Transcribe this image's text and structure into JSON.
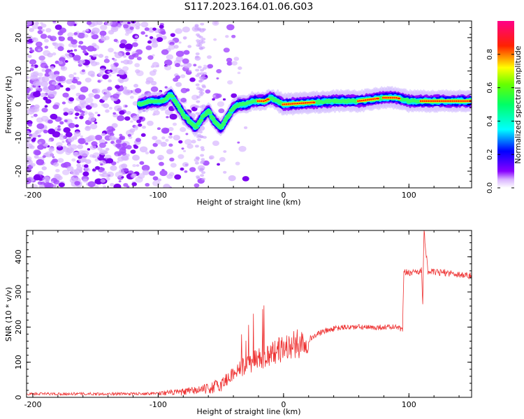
{
  "figure_title": "S117.2023.164.01.06.G03",
  "chart_data": [
    {
      "type": "heatmap",
      "title": "",
      "xlabel": "Height of straight line (km)",
      "ylabel": "Frequency (Hz)",
      "xlim": [
        -205,
        150
      ],
      "ylim": [
        -25,
        25
      ],
      "xticks": [
        -200,
        -100,
        0,
        100
      ],
      "yticks": [
        -20,
        -10,
        0,
        10,
        20
      ],
      "grid": false,
      "colorbar": {
        "label": "Normalized spectral amplitude",
        "range": [
          0,
          1
        ],
        "ticks": [
          0.0,
          0.2,
          0.4,
          0.6,
          0.8
        ],
        "colormap": [
          "#ffffff",
          "#8800ff",
          "#0000ff",
          "#00ffff",
          "#00ff00",
          "#ffff00",
          "#ff0000",
          "#ff0088"
        ]
      },
      "ridge": {
        "x": [
          -115,
          -105,
          -95,
          -90,
          -85,
          -80,
          -75,
          -70,
          -65,
          -60,
          -55,
          -50,
          -45,
          -40,
          -35,
          -30,
          -25,
          -20,
          -15,
          -10,
          -5,
          0,
          20,
          40,
          60,
          80,
          90,
          100,
          110,
          150
        ],
        "y": [
          0,
          1,
          1,
          3,
          0,
          -3,
          -5,
          -7,
          -4,
          -2,
          -5,
          -7,
          -4,
          -1,
          0,
          0,
          1,
          1,
          1,
          2,
          1,
          0,
          0.5,
          1,
          1,
          2,
          2,
          1,
          1,
          1
        ]
      },
      "noise_region": [
        -205,
        -30
      ]
    },
    {
      "type": "line",
      "title": "",
      "xlabel": "Height of straight line (km)",
      "ylabel": "SNR (10 * v/v)",
      "xlim": [
        -205,
        150
      ],
      "ylim": [
        0,
        475
      ],
      "xticks": [
        -200,
        -100,
        0,
        100
      ],
      "yticks": [
        0,
        100,
        200,
        300,
        400
      ],
      "grid": false,
      "color": "#ee3333",
      "series": [
        {
          "x": [
            -205,
            -180,
            -150,
            -120,
            -100,
            -80,
            -60,
            -50,
            -40,
            -30,
            -20,
            -10,
            0,
            10,
            20,
            30,
            40,
            50,
            60,
            70,
            80,
            90,
            95,
            96,
            100,
            105,
            110,
            111,
            112,
            115,
            120,
            130,
            140,
            150
          ],
          "y": [
            10,
            10,
            10,
            10,
            12,
            15,
            25,
            35,
            70,
            90,
            110,
            125,
            140,
            150,
            165,
            185,
            195,
            200,
            200,
            198,
            200,
            200,
            190,
            355,
            355,
            358,
            360,
            260,
            480,
            360,
            355,
            355,
            350,
            345
          ]
        }
      ]
    }
  ]
}
